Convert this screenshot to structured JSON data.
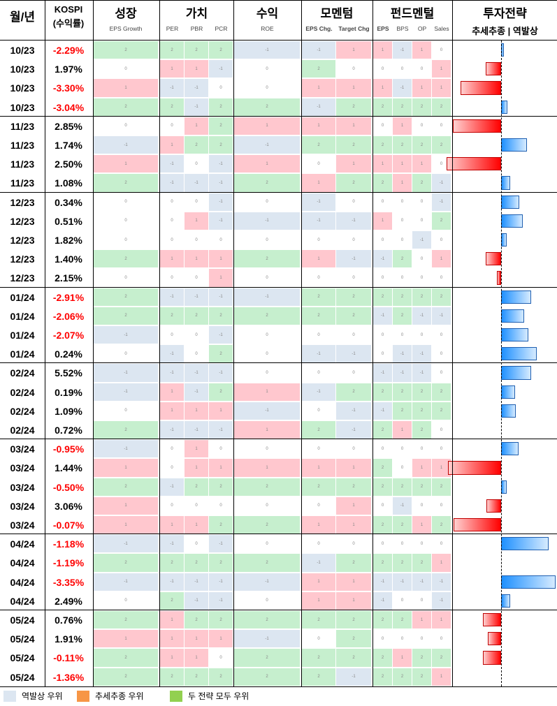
{
  "headers": {
    "month": "월/년",
    "kospi_line1": "KOSPI",
    "kospi_line2": "(수익률)",
    "groups": [
      {
        "title": "성장",
        "subs": [
          "EPS Growth"
        ]
      },
      {
        "title": "가치",
        "subs": [
          "PER",
          "PBR",
          "PCR"
        ]
      },
      {
        "title": "수익",
        "subs": [
          "ROE"
        ]
      },
      {
        "title": "모멘텀",
        "subs": [
          "EPS Chg.",
          "Target Chg"
        ]
      },
      {
        "title": "펀드멘털",
        "subs": [
          "EPS",
          "BPS",
          "OP",
          "Sales"
        ]
      },
      {
        "title": "투자전략",
        "subs": [
          "추세추종 | 역발상"
        ]
      }
    ]
  },
  "colors": {
    "pink": "#ffc7ce",
    "green": "#c6efce",
    "blue": "#dce6f1",
    "white": "#ffffff",
    "red_bar": "#ff0000",
    "blue_bar": "#1e90ff",
    "orange": "#f79646",
    "legend_green": "#92d050"
  },
  "legend": [
    {
      "label": "역발상 우위",
      "color": "#dce6f1"
    },
    {
      "label": "추세추종 우위",
      "color": "#f79646"
    },
    {
      "label": "두 전략 모두 우위",
      "color": "#92d050"
    }
  ],
  "chart_data": {
    "type": "table",
    "columns": [
      "월/년",
      "KOSPI (수익률)",
      "EPS Growth",
      "PER",
      "PBR",
      "PCR",
      "ROE",
      "EPS Chg.",
      "Target Chg",
      "EPS",
      "BPS",
      "OP",
      "Sales",
      "투자전략"
    ],
    "rows": [
      {
        "date": "10/23",
        "ret": "-2.29%",
        "neg": true,
        "scores": [
          2,
          2,
          2,
          2,
          -1,
          -1,
          1,
          1,
          -1,
          1,
          0
        ],
        "strategy": 0.05
      },
      {
        "date": "10/23",
        "ret": "1.97%",
        "neg": false,
        "scores": [
          0,
          1,
          1,
          -1,
          0,
          2,
          0,
          0,
          0,
          0,
          1
        ],
        "strategy": -0.28
      },
      {
        "date": "10/23",
        "ret": "-3.30%",
        "neg": true,
        "scores": [
          1,
          -1,
          -1,
          0,
          0,
          1,
          1,
          1,
          -1,
          1,
          1
        ],
        "strategy": -0.75
      },
      {
        "date": "10/23",
        "ret": "-3.04%",
        "neg": true,
        "scores": [
          2,
          2,
          -1,
          2,
          2,
          -1,
          2,
          2,
          2,
          2,
          2
        ],
        "strategy": 0.12
      },
      {
        "date": "11/23",
        "ret": "2.85%",
        "neg": false,
        "scores": [
          0,
          0,
          1,
          2,
          1,
          1,
          1,
          0,
          1,
          0,
          0
        ],
        "strategy": -0.88
      },
      {
        "date": "11/23",
        "ret": "1.74%",
        "neg": false,
        "scores": [
          -1,
          1,
          2,
          2,
          -1,
          2,
          2,
          2,
          2,
          2,
          2
        ],
        "strategy": 0.47
      },
      {
        "date": "11/23",
        "ret": "2.50%",
        "neg": false,
        "scores": [
          1,
          -1,
          0,
          -1,
          1,
          0,
          1,
          1,
          1,
          1,
          0
        ],
        "strategy": -1.0
      },
      {
        "date": "11/23",
        "ret": "1.08%",
        "neg": false,
        "scores": [
          2,
          -1,
          -1,
          -1,
          2,
          1,
          2,
          2,
          1,
          2,
          -1
        ],
        "strategy": 0.17
      },
      {
        "date": "12/23",
        "ret": "0.34%",
        "neg": false,
        "scores": [
          0,
          0,
          0,
          -1,
          0,
          -1,
          0,
          0,
          0,
          0,
          -1
        ],
        "strategy": 0.33
      },
      {
        "date": "12/23",
        "ret": "0.51%",
        "neg": false,
        "scores": [
          0,
          0,
          1,
          -1,
          -1,
          -1,
          -1,
          1,
          0,
          0,
          2
        ],
        "strategy": 0.4
      },
      {
        "date": "12/23",
        "ret": "1.82%",
        "neg": false,
        "scores": [
          0,
          0,
          0,
          0,
          0,
          0,
          0,
          0,
          0,
          -1,
          0
        ],
        "strategy": 0.1
      },
      {
        "date": "12/23",
        "ret": "1.40%",
        "neg": false,
        "scores": [
          2,
          1,
          1,
          1,
          2,
          1,
          -1,
          -1,
          2,
          0,
          1
        ],
        "strategy": -0.28
      },
      {
        "date": "12/23",
        "ret": "2.15%",
        "neg": false,
        "scores": [
          0,
          0,
          0,
          1,
          0,
          0,
          0,
          0,
          0,
          0,
          0
        ],
        "strategy": -0.08
      },
      {
        "date": "01/24",
        "ret": "-2.91%",
        "neg": true,
        "scores": [
          2,
          -1,
          -1,
          -1,
          -1,
          2,
          2,
          2,
          2,
          2,
          2
        ],
        "strategy": 0.55
      },
      {
        "date": "01/24",
        "ret": "-2.06%",
        "neg": true,
        "scores": [
          2,
          2,
          2,
          2,
          2,
          2,
          2,
          -1,
          2,
          -1,
          -1
        ],
        "strategy": 0.42
      },
      {
        "date": "01/24",
        "ret": "-2.07%",
        "neg": true,
        "scores": [
          -1,
          0,
          0,
          -1,
          0,
          0,
          0,
          0,
          0,
          0,
          0
        ],
        "strategy": 0.5
      },
      {
        "date": "01/24",
        "ret": "0.24%",
        "neg": false,
        "scores": [
          0,
          -1,
          0,
          2,
          0,
          -1,
          -1,
          0,
          -1,
          -1,
          0
        ],
        "strategy": 0.65
      },
      {
        "date": "02/24",
        "ret": "5.52%",
        "neg": false,
        "scores": [
          -1,
          -1,
          -1,
          -1,
          0,
          0,
          0,
          -1,
          -1,
          -1,
          0
        ],
        "strategy": 0.55
      },
      {
        "date": "02/24",
        "ret": "0.19%",
        "neg": false,
        "scores": [
          -1,
          1,
          -1,
          2,
          1,
          -1,
          2,
          2,
          2,
          2,
          2
        ],
        "strategy": 0.25
      },
      {
        "date": "02/24",
        "ret": "1.09%",
        "neg": false,
        "scores": [
          0,
          1,
          1,
          1,
          -1,
          0,
          -1,
          -1,
          2,
          2,
          2
        ],
        "strategy": 0.27
      },
      {
        "date": "02/24",
        "ret": "0.72%",
        "neg": false,
        "scores": [
          2,
          -1,
          -1,
          -1,
          1,
          2,
          -1,
          2,
          1,
          2,
          0
        ],
        "strategy": 0.0
      },
      {
        "date": "03/24",
        "ret": "-0.95%",
        "neg": true,
        "scores": [
          -1,
          0,
          1,
          0,
          0,
          0,
          0,
          0,
          0,
          0,
          0
        ],
        "strategy": 0.32
      },
      {
        "date": "03/24",
        "ret": "1.44%",
        "neg": false,
        "scores": [
          1,
          0,
          1,
          1,
          1,
          1,
          1,
          2,
          0,
          1,
          1
        ],
        "strategy": -0.97
      },
      {
        "date": "03/24",
        "ret": "-0.50%",
        "neg": true,
        "scores": [
          2,
          -1,
          2,
          2,
          2,
          2,
          2,
          2,
          2,
          2,
          2
        ],
        "strategy": 0.1
      },
      {
        "date": "03/24",
        "ret": "3.06%",
        "neg": false,
        "scores": [
          1,
          0,
          0,
          0,
          0,
          0,
          1,
          0,
          -1,
          0,
          0
        ],
        "strategy": -0.27
      },
      {
        "date": "03/24",
        "ret": "-0.07%",
        "neg": true,
        "scores": [
          1,
          1,
          1,
          2,
          2,
          1,
          1,
          2,
          2,
          1,
          2
        ],
        "strategy": -0.87
      },
      {
        "date": "04/24",
        "ret": "-1.18%",
        "neg": true,
        "scores": [
          -1,
          -1,
          0,
          -1,
          0,
          0,
          0,
          0,
          0,
          0,
          0
        ],
        "strategy": 0.87
      },
      {
        "date": "04/24",
        "ret": "-1.19%",
        "neg": true,
        "scores": [
          2,
          2,
          2,
          2,
          2,
          -1,
          2,
          2,
          2,
          2,
          1
        ],
        "strategy": 0.0
      },
      {
        "date": "04/24",
        "ret": "-3.35%",
        "neg": true,
        "scores": [
          -1,
          -1,
          -1,
          -1,
          -1,
          1,
          1,
          -1,
          -1,
          -1,
          -1
        ],
        "strategy": 1.0
      },
      {
        "date": "04/24",
        "ret": "2.49%",
        "neg": false,
        "scores": [
          0,
          2,
          -1,
          -1,
          0,
          1,
          1,
          -1,
          0,
          0,
          -1
        ],
        "strategy": 0.17
      },
      {
        "date": "05/24",
        "ret": "0.76%",
        "neg": false,
        "scores": [
          2,
          1,
          2,
          2,
          2,
          2,
          2,
          2,
          2,
          1,
          1
        ],
        "strategy": -0.33
      },
      {
        "date": "05/24",
        "ret": "1.91%",
        "neg": false,
        "scores": [
          1,
          1,
          1,
          1,
          -1,
          0,
          2,
          0,
          0,
          0,
          0
        ],
        "strategy": -0.25
      },
      {
        "date": "05/24",
        "ret": "-0.11%",
        "neg": true,
        "scores": [
          2,
          1,
          1,
          0,
          2,
          2,
          2,
          2,
          1,
          2,
          2
        ],
        "strategy": -0.33
      },
      {
        "date": "05/24",
        "ret": "-1.36%",
        "neg": true,
        "scores": [
          2,
          2,
          2,
          2,
          2,
          2,
          -1,
          2,
          2,
          2,
          1
        ],
        "strategy": 0.0
      }
    ]
  }
}
